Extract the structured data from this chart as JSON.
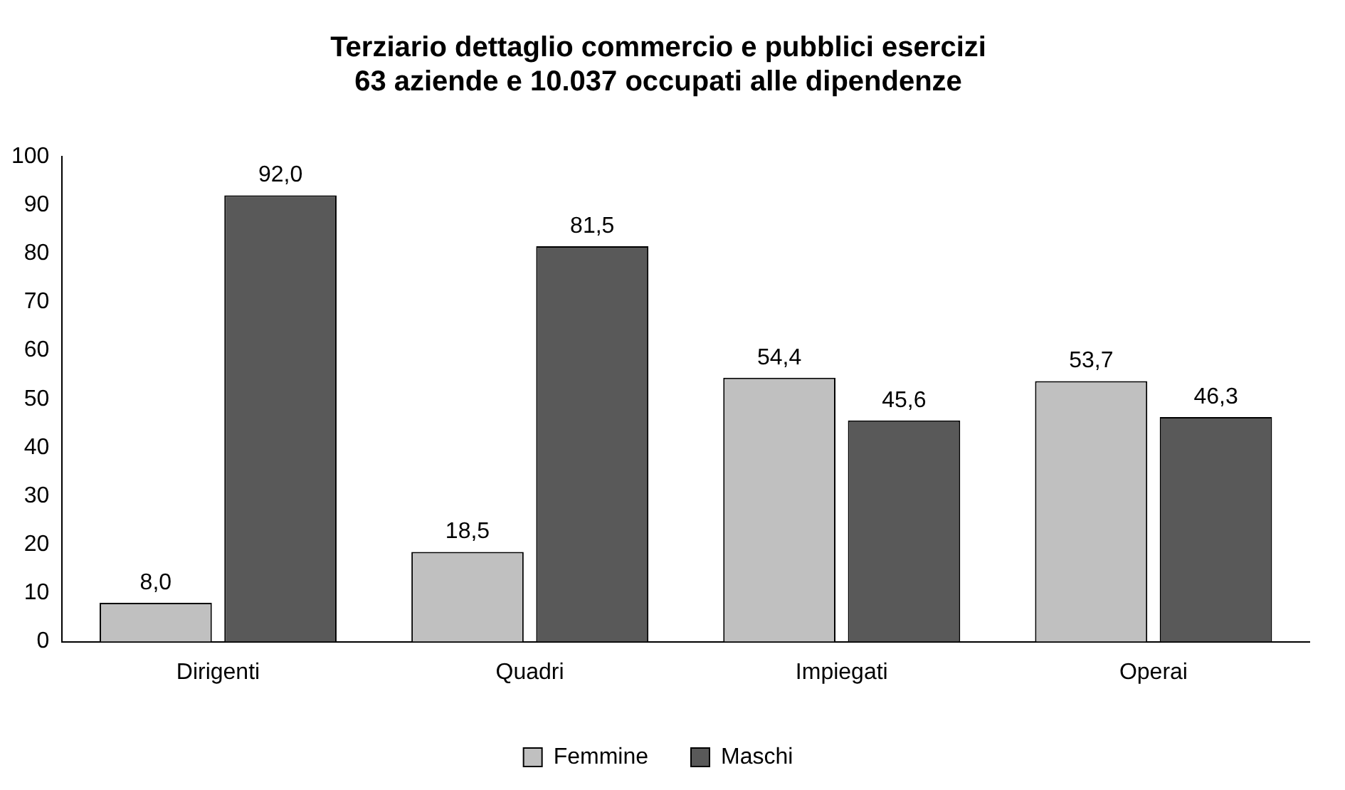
{
  "chart_data": {
    "type": "bar",
    "title": "Terziario dettaglio commercio e pubblici esercizi\n63 aziende e 10.037 occupati alle dipendenze",
    "categories": [
      "Dirigenti",
      "Quadri",
      "Impiegati",
      "Operai"
    ],
    "series": [
      {
        "name": "Femmine",
        "color": "#c0c0c0",
        "values": [
          8.0,
          18.5,
          54.4,
          53.7
        ],
        "value_labels": [
          "8,0",
          "18,5",
          "54,4",
          "53,7"
        ]
      },
      {
        "name": "Maschi",
        "color": "#595959",
        "values": [
          92.0,
          81.5,
          45.6,
          46.3
        ],
        "value_labels": [
          "92,0",
          "81,5",
          "45,6",
          "46,3"
        ]
      }
    ],
    "ylim": [
      0,
      100
    ],
    "yticks": [
      0,
      10,
      20,
      30,
      40,
      50,
      60,
      70,
      80,
      90,
      100
    ],
    "grid": false,
    "legend": "bottom"
  }
}
